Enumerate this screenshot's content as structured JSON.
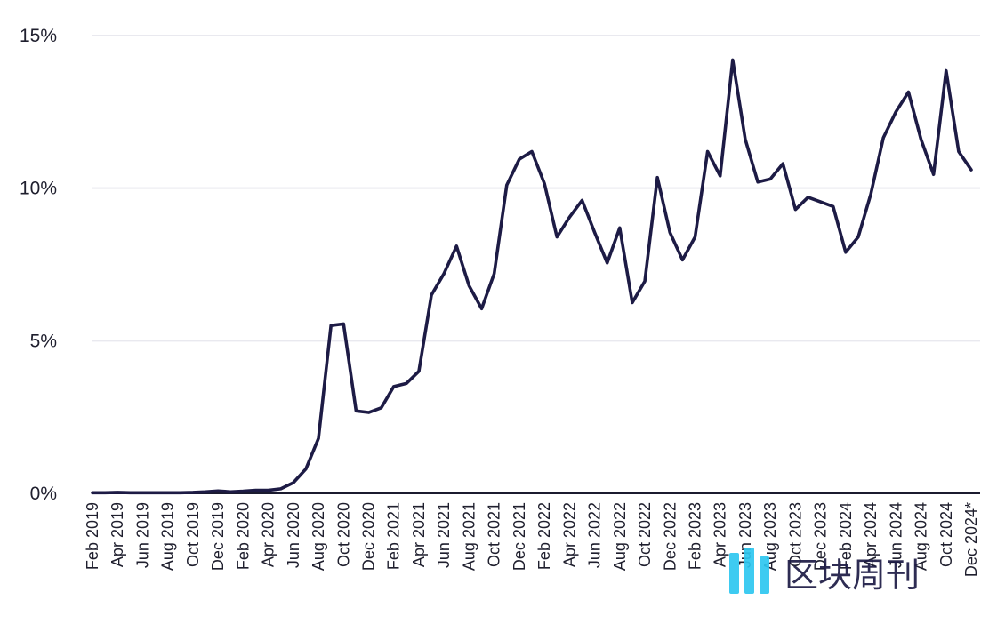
{
  "chart_data": {
    "type": "line",
    "title": "",
    "xlabel": "",
    "ylabel": "",
    "ylim": [
      0,
      15
    ],
    "y_ticks": [
      {
        "value": 0,
        "label": "0%"
      },
      {
        "value": 5,
        "label": "5%"
      },
      {
        "value": 10,
        "label": "10%"
      },
      {
        "value": 15,
        "label": "15%"
      }
    ],
    "grid": "horizontal",
    "x_tick_labels": [
      "Feb 2019",
      "Apr 2019",
      "Jun 2019",
      "Aug 2019",
      "Oct 2019",
      "Dec 2019",
      "Feb 2020",
      "Apr 2020",
      "Jun 2020",
      "Aug 2020",
      "Oct 2020",
      "Dec 2020",
      "Feb 2021",
      "Apr 2021",
      "Jun 2021",
      "Aug 2021",
      "Oct 2021",
      "Dec 2021",
      "Feb 2022",
      "Apr 2022",
      "Jun 2022",
      "Aug 2022",
      "Oct 2022",
      "Dec 2022",
      "Feb 2023",
      "Apr 2023",
      "Jun 2023",
      "Aug 2023",
      "Oct 2023",
      "Dec 2023",
      "Feb 2024",
      "Apr 2024",
      "Jun 2024",
      "Aug 2024",
      "Oct 2024",
      "Dec 2024*"
    ],
    "x": [
      "2019-02",
      "2019-03",
      "2019-04",
      "2019-05",
      "2019-06",
      "2019-07",
      "2019-08",
      "2019-09",
      "2019-10",
      "2019-11",
      "2019-12",
      "2020-01",
      "2020-02",
      "2020-03",
      "2020-04",
      "2020-05",
      "2020-06",
      "2020-07",
      "2020-08",
      "2020-09",
      "2020-10",
      "2020-11",
      "2020-12",
      "2021-01",
      "2021-02",
      "2021-03",
      "2021-04",
      "2021-05",
      "2021-06",
      "2021-07",
      "2021-08",
      "2021-09",
      "2021-10",
      "2021-11",
      "2021-12",
      "2022-01",
      "2022-02",
      "2022-03",
      "2022-04",
      "2022-05",
      "2022-06",
      "2022-07",
      "2022-08",
      "2022-09",
      "2022-10",
      "2022-11",
      "2022-12",
      "2023-01",
      "2023-02",
      "2023-03",
      "2023-04",
      "2023-05",
      "2023-06",
      "2023-07",
      "2023-08",
      "2023-09",
      "2023-10",
      "2023-11",
      "2023-12",
      "2024-01",
      "2024-02",
      "2024-03",
      "2024-04",
      "2024-05",
      "2024-06",
      "2024-07",
      "2024-08",
      "2024-09",
      "2024-10",
      "2024-11",
      "2024-12"
    ],
    "series": [
      {
        "color": "#1d1b45",
        "values": [
          0.02,
          0.02,
          0.03,
          0.02,
          0.02,
          0.02,
          0.02,
          0.02,
          0.03,
          0.05,
          0.08,
          0.05,
          0.07,
          0.1,
          0.1,
          0.15,
          0.35,
          0.8,
          1.8,
          5.5,
          5.55,
          2.7,
          2.65,
          2.8,
          3.5,
          3.6,
          4.0,
          6.5,
          7.2,
          8.1,
          6.8,
          6.05,
          7.2,
          10.1,
          10.95,
          11.2,
          10.15,
          8.4,
          9.05,
          9.6,
          8.55,
          7.55,
          8.7,
          6.25,
          6.95,
          10.35,
          8.55,
          7.65,
          8.4,
          11.2,
          10.4,
          14.2,
          11.6,
          10.2,
          10.3,
          10.8,
          9.3,
          9.7,
          9.55,
          9.4,
          7.9,
          8.4,
          9.8,
          11.65,
          12.5,
          13.15,
          11.6,
          10.45,
          13.85,
          11.2,
          10.6
        ]
      }
    ]
  },
  "watermark": {
    "text": "区块周刊",
    "colors": {
      "bars": "#2ec7f0",
      "text": "#1d1b45"
    }
  }
}
